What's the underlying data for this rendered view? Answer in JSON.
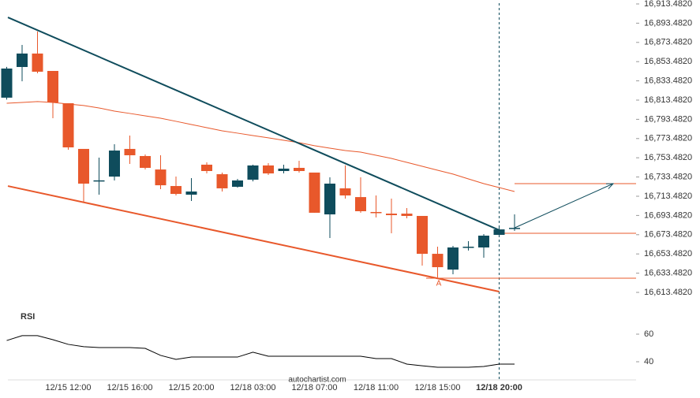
{
  "chart_data": [
    {
      "type": "candlestick",
      "categories": [
        null,
        null,
        null,
        null,
        "12/15 12:00",
        null,
        null,
        null,
        "12/15 16:00",
        null,
        null,
        null,
        "12/15 20:00",
        null,
        null,
        null,
        "12/18 03:00",
        null,
        null,
        null,
        "12/18 07:00",
        null,
        null,
        null,
        "12/18 11:00",
        null,
        null,
        null,
        "12/18 15:00",
        null,
        null,
        null,
        "12/18 20:00",
        null
      ],
      "open": [
        16816.0,
        16847.9,
        16861.9,
        16843.8,
        16810.2,
        16762.7,
        16729.1,
        16733.9,
        16762.7,
        16755.3,
        16741.3,
        16724.1,
        16715.1,
        16746.3,
        16736.4,
        16723.3,
        16730.7,
        16745.5,
        16739.7,
        16743.0,
        16738.1,
        16694.6,
        16721.7,
        16712.6,
        16697.1,
        16695.4,
        16695.4,
        16693.0,
        16653.6,
        16637.2,
        16660.2,
        16660.2,
        16673.3,
        16679.8
      ],
      "high": [
        16848.0,
        16870.9,
        16884.8,
        16843.8,
        16810.2,
        16762.7,
        16753.6,
        16767.6,
        16776.6,
        16756.9,
        16756.1,
        16734.0,
        16732.3,
        16748.7,
        16738.1,
        16731.5,
        16746.3,
        16747.9,
        16746.3,
        16750.4,
        16738.1,
        16733.2,
        16745.5,
        16733.2,
        16714.3,
        16711.0,
        16701.2,
        16693.0,
        16661.0,
        16661.8,
        16666.8,
        16674.1,
        16682.3,
        16694.6
      ],
      "low": [
        16814.0,
        16833.1,
        16841.4,
        16794.6,
        16761.8,
        16707.8,
        16715.1,
        16729.9,
        16747.1,
        16741.3,
        16720.9,
        16714.3,
        16708.6,
        16737.2,
        16718.4,
        16722.4,
        16729.0,
        16735.6,
        16737.2,
        16738.1,
        16696.3,
        16670.0,
        16711.0,
        16696.3,
        16691.4,
        16675.0,
        16690.5,
        16641.3,
        16629.1,
        16632.3,
        16657.0,
        16649.5,
        16672.5,
        16677.4
      ],
      "close": [
        16846.3,
        16861.9,
        16843.0,
        16811.0,
        16764.3,
        16726.6,
        16730.0,
        16761.0,
        16756.1,
        16743.0,
        16724.9,
        16715.9,
        16718.4,
        16739.7,
        16721.7,
        16729.9,
        16745.5,
        16737.2,
        16742.2,
        16739.7,
        16696.3,
        16726.6,
        16714.3,
        16697.9,
        16696.3,
        16693.8,
        16693.0,
        16653.6,
        16639.7,
        16660.2,
        16661.0,
        16672.5,
        16679.0,
        16680.6
      ],
      "up_color": "#0f4c5c",
      "down_color": "#e8582b",
      "moving_average": {
        "color": "#e8582b",
        "values": [
          16810.2,
          16811.0,
          16811.9,
          16811.0,
          16809.4,
          16807.8,
          16805.3,
          16802.0,
          16799.6,
          16797.1,
          16794.6,
          16791.4,
          16788.1,
          16784.8,
          16781.5,
          16779.1,
          16776.6,
          16774.2,
          16771.7,
          16769.2,
          16766.0,
          16763.5,
          16761.0,
          16759.4,
          16756.1,
          16752.8,
          16748.7,
          16744.6,
          16740.5,
          16736.5,
          16731.5,
          16726.6,
          16722.5,
          16718.4
        ]
      },
      "resistance": {
        "color": "#0f4c5c",
        "values": [
          16899.5,
          16678.3
        ]
      },
      "support": {
        "color": "#e8582b",
        "values": [
          16724.1,
          16614.3
        ]
      },
      "levels": {
        "color": "#e8582b",
        "values": [
          16675.0,
          16628.2,
          16726.6
        ]
      },
      "annotations": [
        "A",
        "autochartist.com"
      ],
      "ylim": [
        16602.0,
        16917.58
      ],
      "yticks": [
        {
          "value": 16913.482,
          "label": "16,913.4820"
        },
        {
          "value": 16893.482,
          "label": "16,893.4820"
        },
        {
          "value": 16873.482,
          "label": "16,873.4820"
        },
        {
          "value": 16853.482,
          "label": "16,853.4820"
        },
        {
          "value": 16833.482,
          "label": "16,833.4820"
        },
        {
          "value": 16813.482,
          "label": "16,813.4820"
        },
        {
          "value": 16793.482,
          "label": "16,793.4820"
        },
        {
          "value": 16773.482,
          "label": "16,773.4820"
        },
        {
          "value": 16753.482,
          "label": "16,753.4820"
        },
        {
          "value": 16733.482,
          "label": "16,733.4820"
        },
        {
          "value": 16713.482,
          "label": "16,713.4820"
        },
        {
          "value": 16693.482,
          "label": "16,693.4820"
        },
        {
          "value": 16673.482,
          "label": "16,673.4820"
        },
        {
          "value": 16653.482,
          "label": "16,653.4820"
        },
        {
          "value": 16633.482,
          "label": "16,633.4820"
        },
        {
          "value": 16613.482,
          "label": "16,613.4820"
        }
      ]
    },
    {
      "type": "line",
      "title": "RSI",
      "color": "#000000",
      "values": [
        55.4,
        58.9,
        58.9,
        56,
        52.6,
        50.9,
        50.3,
        50.3,
        50.3,
        49.7,
        44.6,
        41.7,
        43.4,
        43.4,
        43.4,
        43.4,
        46.9,
        44,
        44,
        44,
        44,
        44,
        44,
        44,
        42.3,
        42.3,
        38.3,
        37.1,
        36,
        36,
        36,
        36.6,
        38.3,
        38.3
      ],
      "ylim": [
        29.14,
        79.43
      ],
      "yticks": [
        60,
        40
      ]
    }
  ]
}
